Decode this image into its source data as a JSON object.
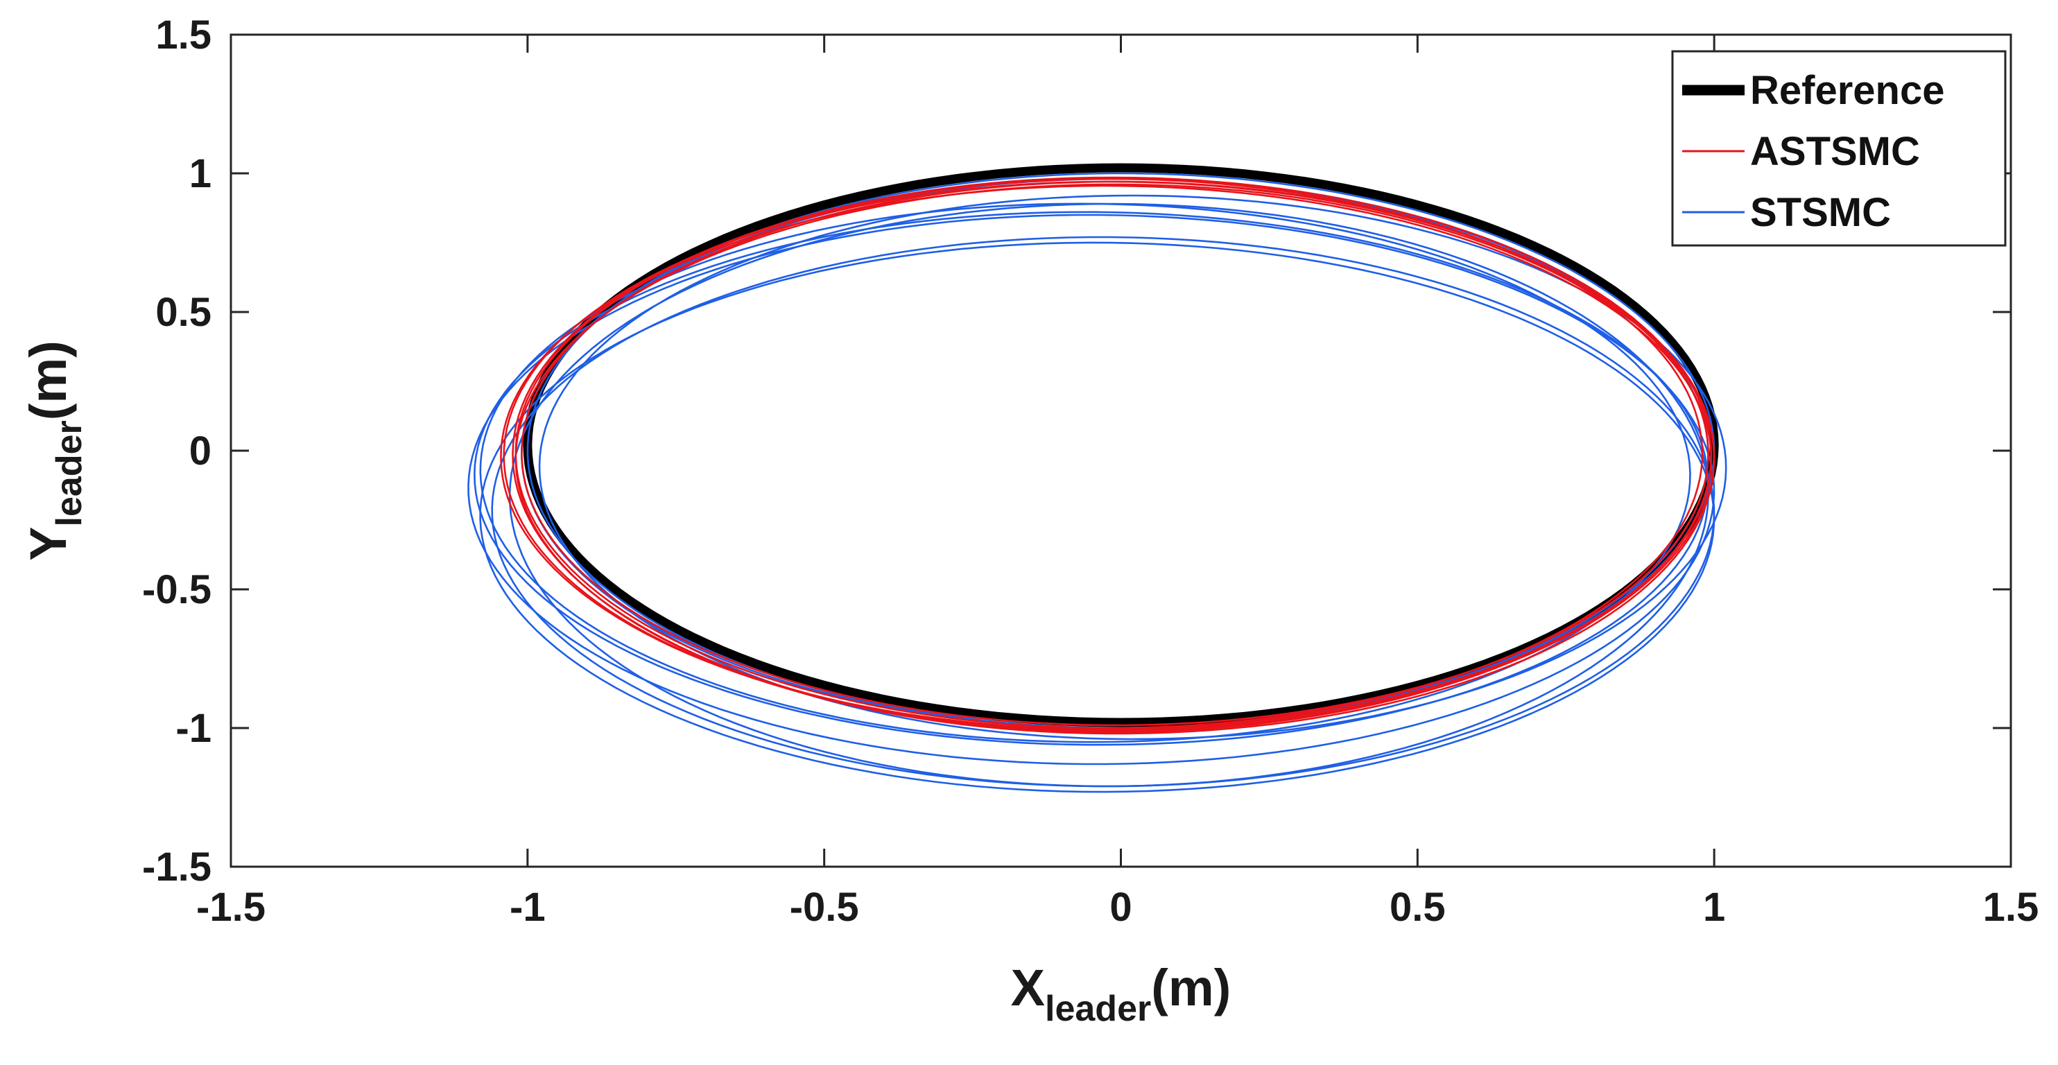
{
  "chart_data": {
    "type": "line",
    "title": "",
    "xlabel": {
      "main": "X",
      "sub": "leader",
      "unit": "(m)"
    },
    "ylabel": {
      "main": "Y",
      "sub": "leader",
      "unit": "(m)"
    },
    "xlim": [
      -1.5,
      1.5
    ],
    "ylim": [
      -1.5,
      1.5
    ],
    "xticks": [
      -1.5,
      -1,
      -0.5,
      0,
      0.5,
      1,
      1.5
    ],
    "yticks": [
      -1.5,
      -1,
      -0.5,
      0,
      0.5,
      1,
      1.5
    ],
    "xtick_labels": [
      "-1.5",
      "-1",
      "-0.5",
      "0",
      "0.5",
      "1",
      "1.5"
    ],
    "ytick_labels": [
      "-1.5",
      "-1",
      "-0.5",
      "0",
      "0.5",
      "1",
      "1.5"
    ],
    "grid": true,
    "legend_position": "top-right",
    "series": [
      {
        "name": "Reference",
        "color": "#000000",
        "style": "thick",
        "loops": [
          {
            "cx": 0.0,
            "cy": 0.02,
            "rx": 1.0,
            "ry": 1.0,
            "tilt": 0.0
          }
        ]
      },
      {
        "name": "ASTSMC",
        "color": "#e8141b",
        "style": "thin",
        "loops": [
          {
            "cx": -0.01,
            "cy": -0.01,
            "rx": 1.0,
            "ry": 0.98,
            "tilt": -0.02
          },
          {
            "cx": -0.02,
            "cy": -0.02,
            "rx": 1.02,
            "ry": 0.99,
            "tilt": -0.03
          },
          {
            "cx": -0.015,
            "cy": -0.015,
            "rx": 1.01,
            "ry": 1.0,
            "tilt": -0.04
          },
          {
            "cx": -0.025,
            "cy": -0.025,
            "rx": 1.02,
            "ry": 0.98,
            "tilt": -0.03
          },
          {
            "cx": -0.01,
            "cy": -0.03,
            "rx": 1.01,
            "ry": 0.99,
            "tilt": -0.05
          },
          {
            "cx": -0.02,
            "cy": -0.01,
            "rx": 1.0,
            "ry": 0.99,
            "tilt": -0.02
          }
        ]
      },
      {
        "name": "STSMC",
        "color": "#1f5fe6",
        "style": "thin",
        "loops": [
          {
            "cx": 0.0,
            "cy": 0.0,
            "rx": 1.0,
            "ry": 1.0,
            "tilt": -0.02
          },
          {
            "cx": -0.01,
            "cy": -0.01,
            "rx": 1.0,
            "ry": 0.99,
            "tilt": -0.03
          },
          {
            "cx": -0.02,
            "cy": -0.16,
            "rx": 1.01,
            "ry": 1.05,
            "tilt": -0.04
          },
          {
            "cx": -0.03,
            "cy": -0.22,
            "rx": 1.03,
            "ry": 0.99,
            "tilt": -0.05
          },
          {
            "cx": -0.04,
            "cy": -0.24,
            "rx": 1.04,
            "ry": 0.99,
            "tilt": -0.06
          },
          {
            "cx": -0.05,
            "cy": -0.14,
            "rx": 1.05,
            "ry": 0.99,
            "tilt": -0.05
          },
          {
            "cx": -0.05,
            "cy": -0.1,
            "rx": 1.04,
            "ry": 0.96,
            "tilt": -0.08
          },
          {
            "cx": 0.02,
            "cy": -0.06,
            "rx": 1.0,
            "ry": 0.98,
            "tilt": -0.04
          },
          {
            "cx": -0.06,
            "cy": -0.08,
            "rx": 1.02,
            "ry": 0.97,
            "tilt": -0.1
          }
        ]
      }
    ]
  }
}
